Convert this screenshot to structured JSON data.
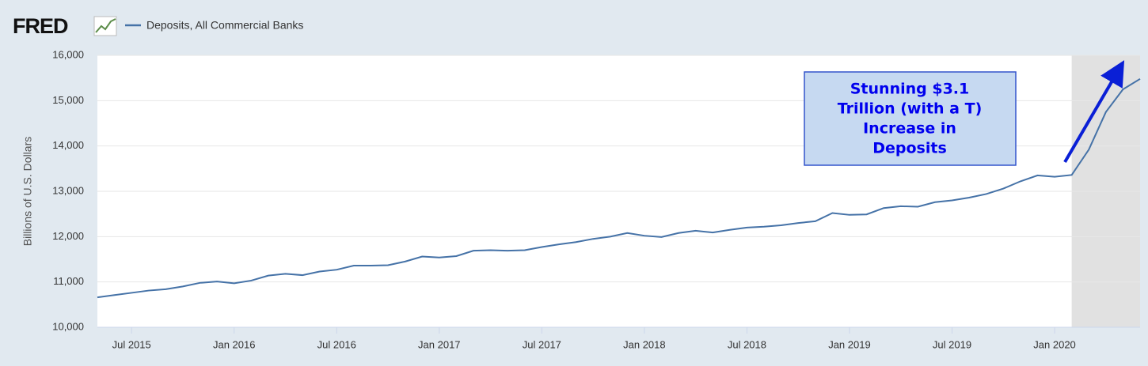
{
  "chart_data": {
    "type": "line",
    "logo": "FRED",
    "y_label": "Billions of U.S. Dollars",
    "x": [
      "2015-05",
      "2015-06",
      "2015-07",
      "2015-08",
      "2015-09",
      "2015-10",
      "2015-11",
      "2015-12",
      "2016-01",
      "2016-02",
      "2016-03",
      "2016-04",
      "2016-05",
      "2016-06",
      "2016-07",
      "2016-08",
      "2016-09",
      "2016-10",
      "2016-11",
      "2016-12",
      "2017-01",
      "2017-02",
      "2017-03",
      "2017-04",
      "2017-05",
      "2017-06",
      "2017-07",
      "2017-08",
      "2017-09",
      "2017-10",
      "2017-11",
      "2017-12",
      "2018-01",
      "2018-02",
      "2018-03",
      "2018-04",
      "2018-05",
      "2018-06",
      "2018-07",
      "2018-08",
      "2018-09",
      "2018-10",
      "2018-11",
      "2018-12",
      "2019-01",
      "2019-02",
      "2019-03",
      "2019-04",
      "2019-05",
      "2019-06",
      "2019-07",
      "2019-08",
      "2019-09",
      "2019-10",
      "2019-11",
      "2019-12",
      "2020-01",
      "2020-02",
      "2020-03",
      "2020-04",
      "2020-05",
      "2020-06"
    ],
    "series": [
      {
        "name": "Deposits, All Commercial Banks",
        "color": "#4572a7",
        "values": [
          10660,
          10710,
          10760,
          10810,
          10840,
          10900,
          10980,
          11010,
          10970,
          11030,
          11140,
          11180,
          11150,
          11230,
          11270,
          11360,
          11360,
          11370,
          11450,
          11560,
          11540,
          11570,
          11690,
          11700,
          11690,
          11700,
          11770,
          11830,
          11880,
          11950,
          12000,
          12080,
          12020,
          11990,
          12080,
          12130,
          12090,
          12150,
          12200,
          12220,
          12250,
          12300,
          12340,
          12520,
          12480,
          12490,
          12630,
          12670,
          12660,
          12760,
          12800,
          12860,
          12940,
          13060,
          13220,
          13350,
          13320,
          13360,
          13920,
          14750,
          15250,
          15480
        ]
      }
    ],
    "xlim": [
      "2015-05",
      "2020-06"
    ],
    "xticks": [
      {
        "value": "2015-07",
        "label": "Jul 2015"
      },
      {
        "value": "2016-01",
        "label": "Jan 2016"
      },
      {
        "value": "2016-07",
        "label": "Jul 2016"
      },
      {
        "value": "2017-01",
        "label": "Jan 2017"
      },
      {
        "value": "2017-07",
        "label": "Jul 2017"
      },
      {
        "value": "2018-01",
        "label": "Jan 2018"
      },
      {
        "value": "2018-07",
        "label": "Jul 2018"
      },
      {
        "value": "2019-01",
        "label": "Jan 2019"
      },
      {
        "value": "2019-07",
        "label": "Jul 2019"
      },
      {
        "value": "2020-01",
        "label": "Jan 2020"
      }
    ],
    "ylim": [
      10000,
      16000
    ],
    "yticks": [
      {
        "value": 10000,
        "label": "10,000"
      },
      {
        "value": 11000,
        "label": "11,000"
      },
      {
        "value": 12000,
        "label": "12,000"
      },
      {
        "value": 13000,
        "label": "13,000"
      },
      {
        "value": 14000,
        "label": "14,000"
      },
      {
        "value": 15000,
        "label": "15,000"
      },
      {
        "value": 16000,
        "label": "16,000"
      }
    ],
    "grid": true,
    "recession": [
      "2020-02",
      "2020-06"
    ],
    "annotation": {
      "lines": [
        "Stunning $3.1",
        "Trillion (with a T)",
        "Increase in",
        "Deposits"
      ]
    }
  }
}
